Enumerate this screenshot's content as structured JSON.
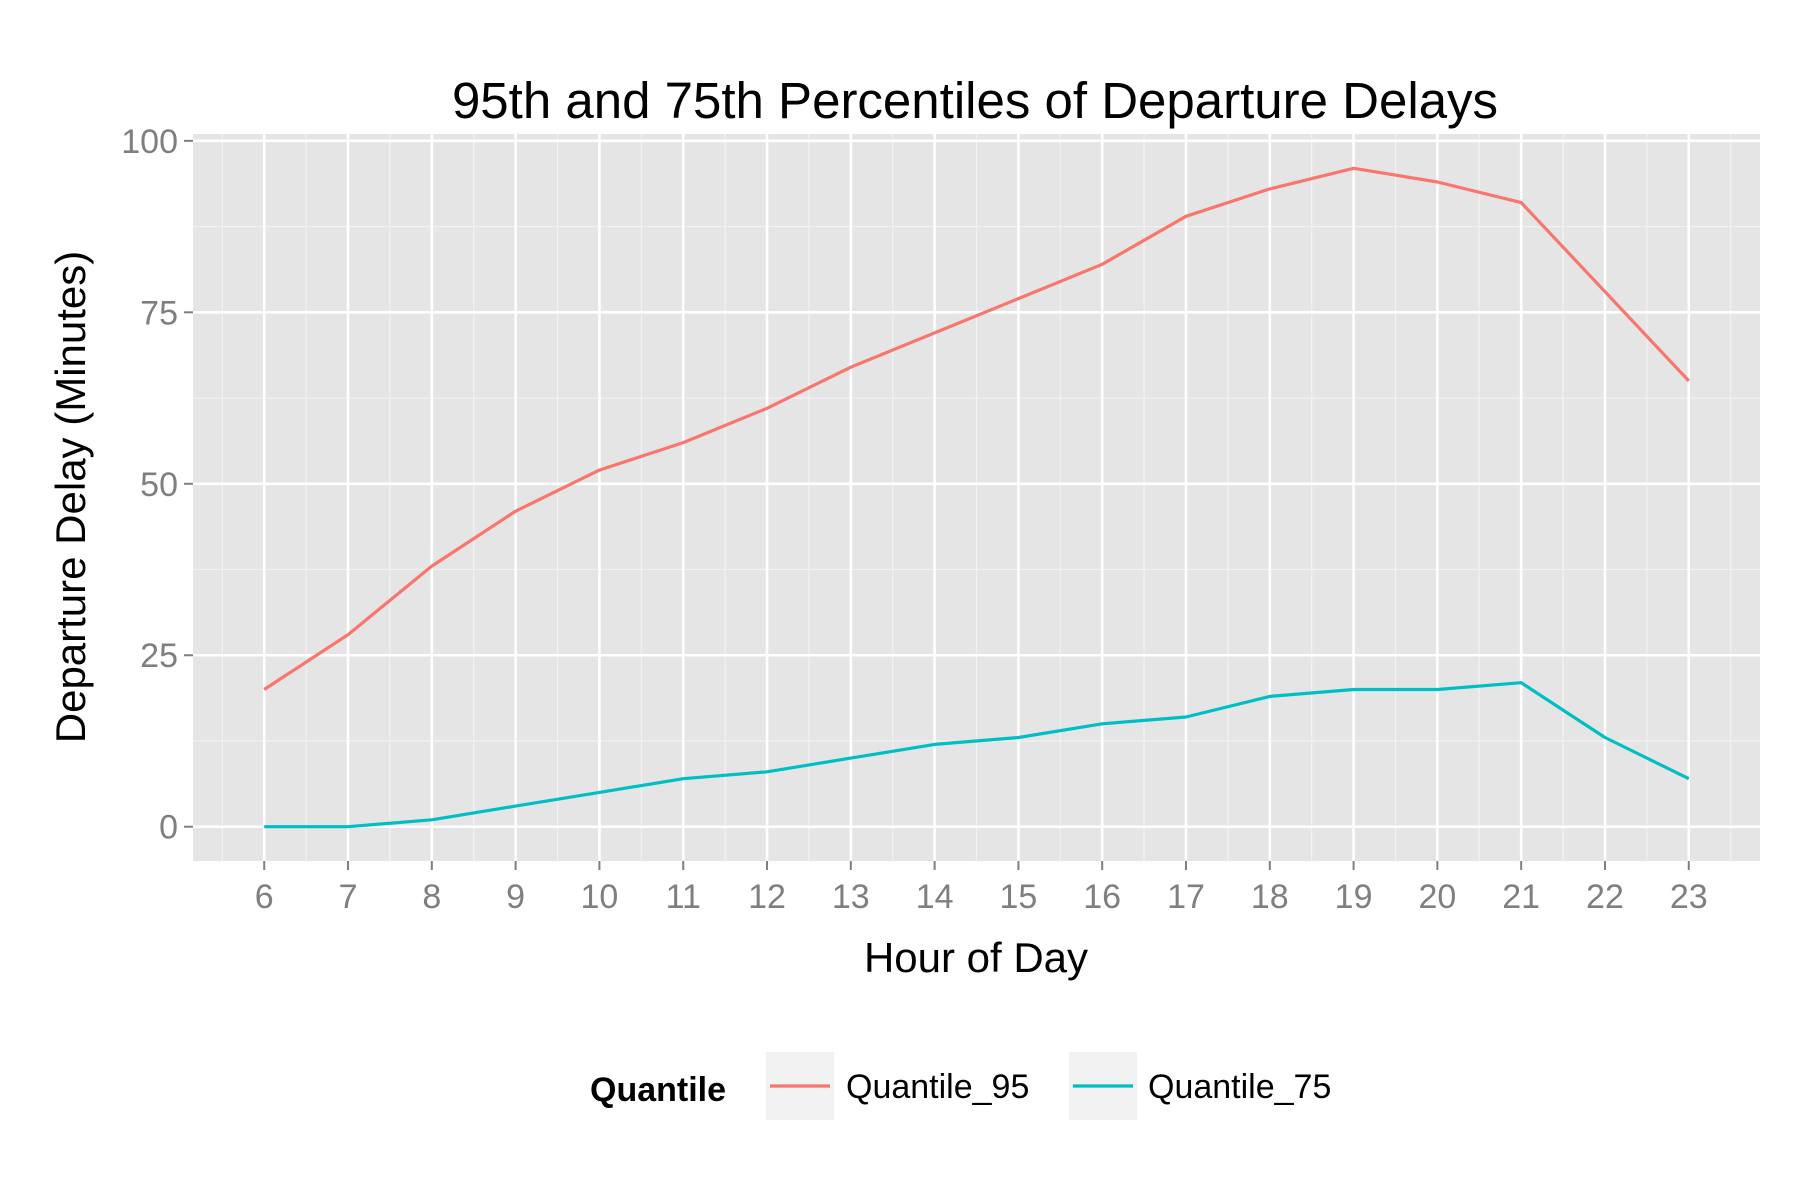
{
  "chart_data": {
    "type": "line",
    "title": "95th and 75th Percentiles of Departure Delays",
    "xlabel": "Hour of Day",
    "ylabel": "Departure Delay (Minutes)",
    "x": [
      6,
      7,
      8,
      9,
      10,
      11,
      12,
      13,
      14,
      15,
      16,
      17,
      18,
      19,
      20,
      21,
      22,
      23
    ],
    "xlim": [
      5.15,
      23.85
    ],
    "ylim": [
      -5,
      101
    ],
    "yticks": [
      0,
      25,
      50,
      75,
      100
    ],
    "grid": true,
    "legend": {
      "title": "Quantile",
      "position": "bottom"
    },
    "series": [
      {
        "name": "Quantile_95",
        "color": "#F8766D",
        "values": [
          20,
          28,
          38,
          46,
          52,
          56,
          61,
          67,
          72,
          77,
          82,
          89,
          93,
          96,
          94,
          91,
          78,
          65
        ]
      },
      {
        "name": "Quantile_75",
        "color": "#00BFC4",
        "values": [
          0,
          0,
          1,
          3,
          5,
          7,
          8,
          10,
          12,
          13,
          15,
          16,
          19,
          20,
          20,
          21,
          13,
          7
        ]
      }
    ]
  }
}
